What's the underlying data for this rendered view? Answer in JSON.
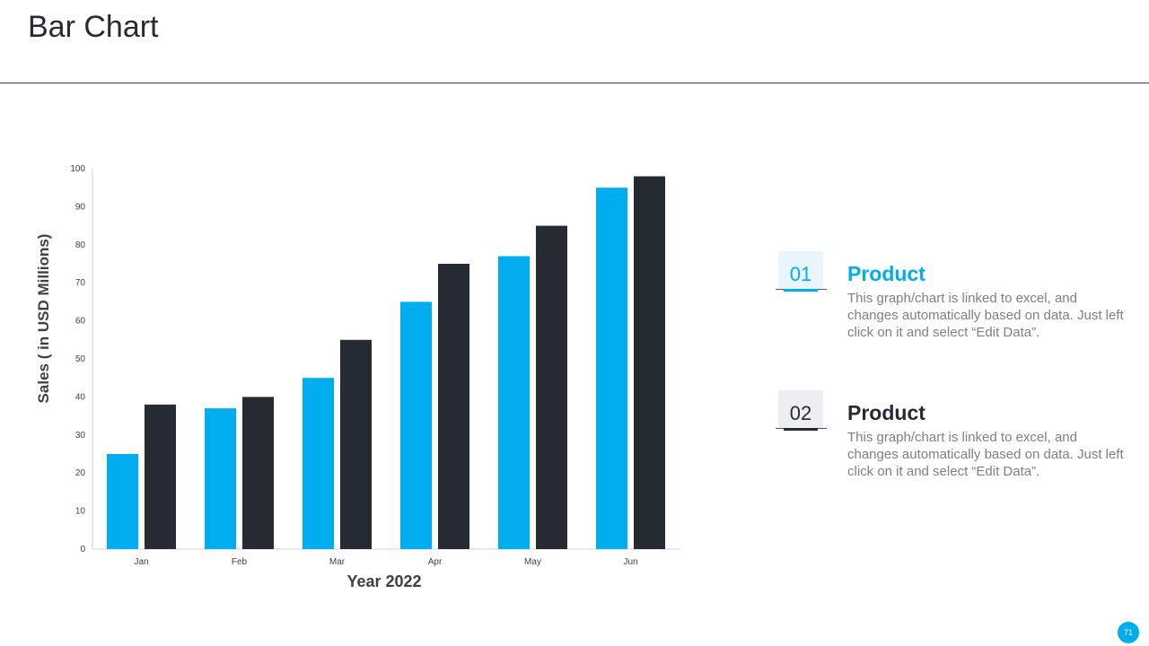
{
  "slide": {
    "title": "Bar Chart",
    "page_number": "71"
  },
  "colors": {
    "accent": "#00AEEF",
    "dark": "#262A33"
  },
  "chart_data": {
    "type": "bar",
    "categories": [
      "Jan",
      "Feb",
      "Mar",
      "Apr",
      "May",
      "Jun"
    ],
    "series": [
      {
        "values": [
          25,
          37,
          45,
          65,
          77,
          95
        ],
        "color": "#00AEEF"
      },
      {
        "values": [
          38,
          40,
          55,
          75,
          85,
          98
        ],
        "color": "#262A33"
      }
    ],
    "xlabel": "Year 2022",
    "ylabel": "Sales  ( in USD Millions)",
    "ylim": [
      0,
      100
    ],
    "yticks": [
      0,
      10,
      20,
      30,
      40,
      50,
      60,
      70,
      80,
      90,
      100
    ],
    "grid": false,
    "legend": "none"
  },
  "legend_items": [
    {
      "number": "01",
      "title": "Product",
      "description": "This graph/chart is linked to excel, and changes automatically based on data. Just left click on it and select “Edit Data”.",
      "color": "#00AEEF"
    },
    {
      "number": "02",
      "title": "Product",
      "description": "This graph/chart is linked to excel, and changes automatically based on data. Just left click on it and select “Edit Data”.",
      "color": "#262A33"
    }
  ]
}
